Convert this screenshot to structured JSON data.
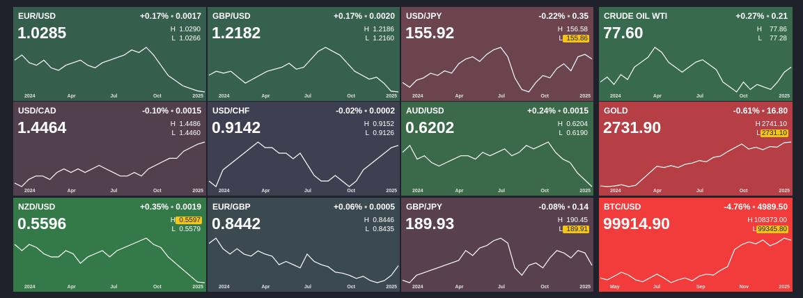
{
  "labels": {
    "high": "H",
    "low": "L"
  },
  "tiles": [
    {
      "symbol": "EUR/USD",
      "change_pct": "+0.17%",
      "change": "0.0017",
      "price": "1.0285",
      "high": "1.0290",
      "low": "1.0266",
      "color": "#355e4e",
      "x_labels": [
        "2024",
        "Apr",
        "Jul",
        "Oct",
        "2025"
      ],
      "series": [
        1.09,
        1.1,
        1.085,
        1.08,
        1.09,
        1.075,
        1.07,
        1.08,
        1.085,
        1.09,
        1.08,
        1.075,
        1.085,
        1.09,
        1.095,
        1.1,
        1.11,
        1.105,
        1.115,
        1.1,
        1.08,
        1.06,
        1.05,
        1.04,
        1.035,
        1.03,
        1.028
      ]
    },
    {
      "symbol": "GBP/USD",
      "change_pct": "+0.17%",
      "change": "0.0020",
      "price": "1.2182",
      "high": "1.2186",
      "low": "1.2160",
      "color": "#36614f",
      "x_labels": [
        "2024",
        "Apr",
        "Jul",
        "Oct",
        "2025"
      ],
      "series": [
        1.26,
        1.27,
        1.265,
        1.27,
        1.255,
        1.24,
        1.25,
        1.26,
        1.27,
        1.275,
        1.28,
        1.29,
        1.275,
        1.28,
        1.3,
        1.32,
        1.33,
        1.32,
        1.31,
        1.29,
        1.27,
        1.26,
        1.25,
        1.255,
        1.24,
        1.22,
        1.218
      ]
    },
    {
      "symbol": "USD/JPY",
      "change_pct": "-0.22%",
      "change": "0.35",
      "price": "155.92",
      "high": "156.58",
      "low": "155.86",
      "highlight": "low",
      "color": "#6b4450",
      "x_labels": [
        "2024",
        "Apr",
        "Jul",
        "Oct",
        "2025"
      ],
      "series": [
        146,
        144,
        147,
        148,
        150,
        149,
        151,
        150,
        154,
        156,
        157,
        155,
        158,
        160,
        161,
        157,
        148,
        143,
        142,
        146,
        149,
        148,
        152,
        154,
        151,
        157,
        158,
        156
      ]
    },
    {
      "symbol": "CRUDE OIL WTI",
      "change_pct": "+0.27%",
      "change": "0.21",
      "price": "77.60",
      "high": "77.86",
      "low": "77.28",
      "color": "#386a4e",
      "x_labels": [
        "2024",
        "Apr",
        "Jul",
        "Oct",
        "2025"
      ],
      "series": [
        72,
        74,
        71,
        75,
        73,
        78,
        80,
        82,
        86,
        84,
        80,
        78,
        76,
        78,
        80,
        81,
        79,
        77,
        72,
        70,
        68,
        72,
        69,
        71,
        70,
        69,
        72,
        76,
        78
      ]
    },
    {
      "symbol": "USD/CAD",
      "change_pct": "-0.10%",
      "change": "0.0015",
      "price": "1.4464",
      "high": "1.4486",
      "low": "1.4460",
      "color": "#53404f",
      "x_labels": [
        "2024",
        "Apr",
        "Jul",
        "Oct",
        "2025"
      ],
      "series": [
        1.33,
        1.32,
        1.34,
        1.35,
        1.35,
        1.34,
        1.36,
        1.37,
        1.36,
        1.37,
        1.36,
        1.37,
        1.38,
        1.37,
        1.36,
        1.35,
        1.35,
        1.36,
        1.35,
        1.37,
        1.38,
        1.39,
        1.4,
        1.4,
        1.42,
        1.43,
        1.44,
        1.446
      ]
    },
    {
      "symbol": "USD/CHF",
      "change_pct": "-0.02%",
      "change": "0.0002",
      "price": "0.9142",
      "high": "0.9152",
      "low": "0.9126",
      "color": "#3f3f52",
      "x_labels": [
        "2024",
        "Apr",
        "Jul",
        "Oct",
        "2025"
      ],
      "series": [
        0.85,
        0.84,
        0.87,
        0.88,
        0.89,
        0.9,
        0.91,
        0.92,
        0.91,
        0.91,
        0.9,
        0.9,
        0.89,
        0.9,
        0.88,
        0.86,
        0.85,
        0.85,
        0.86,
        0.85,
        0.84,
        0.85,
        0.87,
        0.88,
        0.89,
        0.9,
        0.91,
        0.914
      ]
    },
    {
      "symbol": "AUD/USD",
      "change_pct": "+0.24%",
      "change": "0.0015",
      "price": "0.6202",
      "high": "0.6204",
      "low": "0.6190",
      "color": "#3a6a4a",
      "x_labels": [
        "2024",
        "Apr",
        "Jul",
        "Oct",
        "2025"
      ],
      "series": [
        0.67,
        0.68,
        0.66,
        0.665,
        0.655,
        0.65,
        0.655,
        0.66,
        0.665,
        0.665,
        0.66,
        0.67,
        0.665,
        0.67,
        0.675,
        0.665,
        0.67,
        0.68,
        0.675,
        0.68,
        0.685,
        0.67,
        0.66,
        0.655,
        0.64,
        0.63,
        0.62
      ]
    },
    {
      "symbol": "GOLD",
      "change_pct": "-0.61%",
      "change": "16.80",
      "price": "2731.90",
      "high": "2741.10",
      "low": "2731.10",
      "highlight": "low",
      "color": "#b53f44",
      "x_labels": [
        "2024",
        "Apr",
        "Jul",
        "Oct",
        "2025"
      ],
      "series": [
        2040,
        2030,
        2040,
        2060,
        2030,
        2050,
        2150,
        2250,
        2350,
        2330,
        2360,
        2330,
        2380,
        2400,
        2440,
        2420,
        2490,
        2510,
        2580,
        2640,
        2700,
        2620,
        2650,
        2610,
        2660,
        2650,
        2720,
        2731
      ]
    },
    {
      "symbol": "NZD/USD",
      "change_pct": "+0.35%",
      "change": "0.0019",
      "price": "0.5596",
      "high": "0.5597",
      "low": "0.5579",
      "highlight": "high",
      "color": "#347a48",
      "x_labels": [
        "2024",
        "Apr",
        "Jul",
        "Oct",
        "2025"
      ],
      "series": [
        0.62,
        0.61,
        0.62,
        0.615,
        0.605,
        0.6,
        0.6,
        0.61,
        0.605,
        0.59,
        0.6,
        0.605,
        0.61,
        0.6,
        0.61,
        0.615,
        0.62,
        0.625,
        0.63,
        0.62,
        0.615,
        0.6,
        0.59,
        0.58,
        0.57,
        0.56,
        0.559
      ]
    },
    {
      "symbol": "EUR/GBP",
      "change_pct": "+0.06%",
      "change": "0.0005",
      "price": "0.8442",
      "high": "0.8446",
      "low": "0.8435",
      "color": "#3b4a50",
      "x_labels": [
        "2024",
        "Apr",
        "Jul",
        "Oct",
        "2025"
      ],
      "series": [
        0.865,
        0.87,
        0.86,
        0.855,
        0.86,
        0.855,
        0.853,
        0.858,
        0.855,
        0.853,
        0.845,
        0.848,
        0.845,
        0.842,
        0.855,
        0.848,
        0.845,
        0.843,
        0.838,
        0.837,
        0.835,
        0.832,
        0.834,
        0.83,
        0.828,
        0.83,
        0.835,
        0.844
      ]
    },
    {
      "symbol": "GBP/JPY",
      "change_pct": "-0.08%",
      "change": "0.14",
      "price": "189.93",
      "high": "190.45",
      "low": "189.91",
      "highlight": "low",
      "color": "#58404f",
      "x_labels": [
        "2024",
        "Apr",
        "Jul",
        "Oct",
        "2025"
      ],
      "series": [
        184,
        183,
        186,
        187,
        188,
        189,
        190,
        191,
        192,
        196,
        194,
        197,
        198,
        200,
        201,
        199,
        189,
        186,
        190,
        191,
        189,
        193,
        196,
        195,
        193,
        196,
        195,
        190
      ]
    },
    {
      "symbol": "BTC/USD",
      "change_pct": "-4.76%",
      "change": "4989.50",
      "price": "99914.90",
      "high": "108373.00",
      "low": "99345.80",
      "highlight": "low",
      "color": "#f23b3b",
      "x_labels": [
        "May",
        "Jul",
        "Sep",
        "Nov",
        "2025"
      ],
      "series": [
        60000,
        58000,
        62000,
        66000,
        63000,
        58000,
        56000,
        60000,
        64000,
        60000,
        55000,
        58000,
        60000,
        57000,
        62000,
        64000,
        63000,
        68000,
        72000,
        90000,
        95000,
        98000,
        96000,
        100000,
        94000,
        97000,
        102000,
        99900
      ]
    }
  ]
}
